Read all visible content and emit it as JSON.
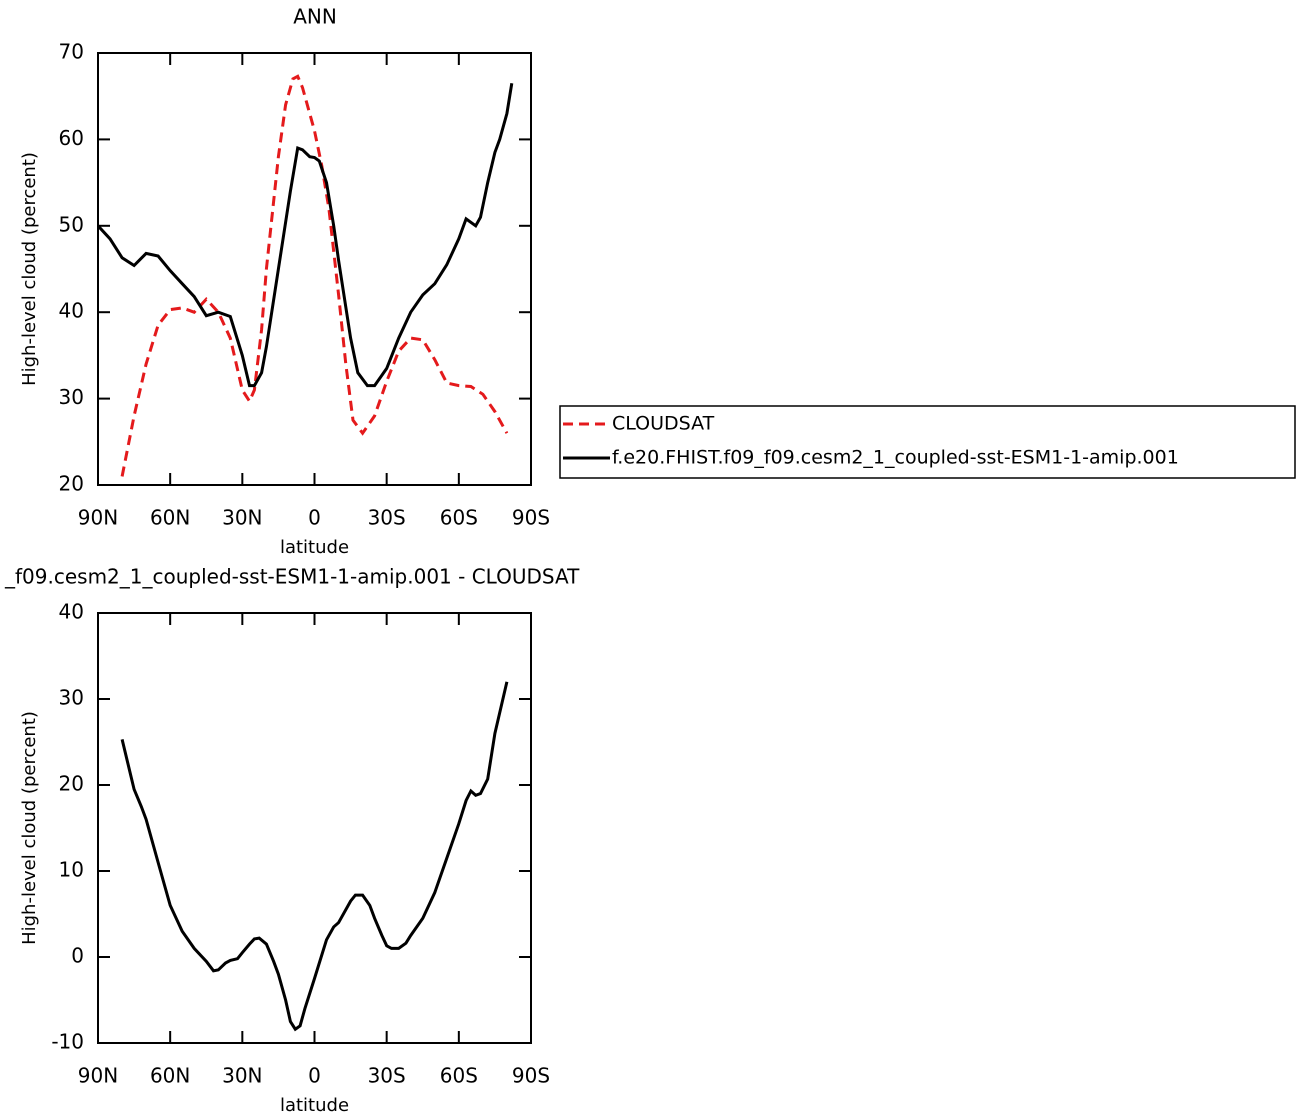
{
  "chart_data": [
    {
      "type": "line",
      "title": "ANN",
      "xlabel": "latitude",
      "ylabel": "High-level cloud (percent)",
      "xlim": [
        90,
        -90
      ],
      "xticks": [
        {
          "value": 90,
          "label": "90N"
        },
        {
          "value": 60,
          "label": "60N"
        },
        {
          "value": 30,
          "label": "30N"
        },
        0,
        {
          "value": -30,
          "label": "30S"
        },
        {
          "value": -60,
          "label": "60S"
        },
        {
          "value": -90,
          "label": "90S"
        }
      ],
      "ylim": [
        20,
        70
      ],
      "yticks": [
        20,
        30,
        40,
        50,
        60,
        70
      ],
      "legend": "right",
      "series": [
        {
          "name": "CLOUDSAT",
          "color": "#e41a1c",
          "dashed": true,
          "x": [
            80,
            75,
            70,
            65,
            60,
            55,
            50,
            45,
            40,
            35,
            30,
            27,
            25,
            22,
            20,
            15,
            12,
            9,
            7,
            5,
            0,
            -3,
            -6,
            -10,
            -13,
            -16,
            -20,
            -25,
            -30,
            -35,
            -40,
            -45,
            -50,
            -55,
            -60,
            -65,
            -70,
            -75,
            -80
          ],
          "values": [
            21,
            28,
            34,
            38.5,
            40.3,
            40.5,
            40,
            41.5,
            40,
            37,
            31,
            29.7,
            31,
            38,
            45,
            58,
            64,
            67,
            67.3,
            66,
            61,
            57,
            52,
            42,
            34,
            27.5,
            26,
            28,
            32,
            35.5,
            37,
            36.8,
            34.5,
            31.8,
            31.5,
            31.4,
            30.5,
            28.5,
            26
          ]
        },
        {
          "name": "f.e20.FHIST.f09_f09.cesm2_1_coupled-sst-ESM1-1-amip.001",
          "color": "#000000",
          "dashed": false,
          "x": [
            90,
            85,
            80,
            75,
            70,
            65,
            60,
            55,
            50,
            45,
            40,
            35,
            30,
            27,
            25,
            22,
            20,
            15,
            10,
            7,
            5,
            2,
            0,
            -2,
            -5,
            -8,
            -10,
            -15,
            -18,
            -22,
            -25,
            -30,
            -35,
            -40,
            -45,
            -50,
            -55,
            -60,
            -63,
            -67,
            -69,
            -72,
            -75,
            -77,
            -80,
            -82
          ],
          "values": [
            50,
            48.5,
            46.3,
            45.4,
            46.8,
            46.5,
            44.8,
            43.3,
            41.8,
            39.6,
            40,
            39.5,
            35,
            31.5,
            31.5,
            33,
            36,
            45,
            54,
            59,
            58.8,
            58,
            57.9,
            57.5,
            55,
            50,
            46,
            37,
            33,
            31.5,
            31.5,
            33.5,
            37,
            40,
            42,
            43.3,
            45.5,
            48.5,
            50.8,
            50,
            51,
            55,
            58.5,
            60,
            63,
            66.5
          ]
        }
      ]
    },
    {
      "type": "line",
      "title": "_f09.cesm2_1_coupled-sst-ESM1-1-amip.001 - CLOUDSAT",
      "xlabel": "latitude",
      "ylabel": "High-level cloud (percent)",
      "xlim": [
        90,
        -90
      ],
      "xticks": [
        {
          "value": 90,
          "label": "90N"
        },
        {
          "value": 60,
          "label": "60N"
        },
        {
          "value": 30,
          "label": "30N"
        },
        0,
        {
          "value": -30,
          "label": "30S"
        },
        {
          "value": -60,
          "label": "60S"
        },
        {
          "value": -90,
          "label": "90S"
        }
      ],
      "ylim": [
        -10,
        40
      ],
      "yticks": [
        -10,
        0,
        10,
        20,
        30,
        40
      ],
      "series": [
        {
          "color": "#000000",
          "dashed": false,
          "x": [
            80,
            75,
            72,
            70,
            65,
            60,
            55,
            50,
            45,
            42,
            40,
            37,
            35,
            32,
            30,
            27,
            25,
            23,
            20,
            17,
            15,
            12,
            10,
            8,
            6,
            4,
            0,
            -5,
            -8,
            -10,
            -15,
            -17,
            -20,
            -23,
            -25,
            -28,
            -30,
            -32,
            -35,
            -38,
            -40,
            -45,
            -50,
            -55,
            -60,
            -63,
            -65,
            -67,
            -69,
            -72,
            -75,
            -80
          ],
          "values": [
            25.3,
            19.5,
            17.5,
            16,
            11,
            6,
            3,
            1,
            -0.5,
            -1.6,
            -1.5,
            -0.7,
            -0.4,
            -0.2,
            0.5,
            1.5,
            2.1,
            2.2,
            1.5,
            -0.5,
            -2,
            -5,
            -7.5,
            -8.4,
            -8,
            -6,
            -2.5,
            2,
            3.5,
            4,
            6.5,
            7.2,
            7.2,
            6,
            4.5,
            2.5,
            1.3,
            1,
            1,
            1.6,
            2.5,
            4.5,
            7.5,
            11.5,
            15.5,
            18.2,
            19.3,
            18.8,
            19,
            20.7,
            26,
            32
          ]
        }
      ]
    }
  ]
}
